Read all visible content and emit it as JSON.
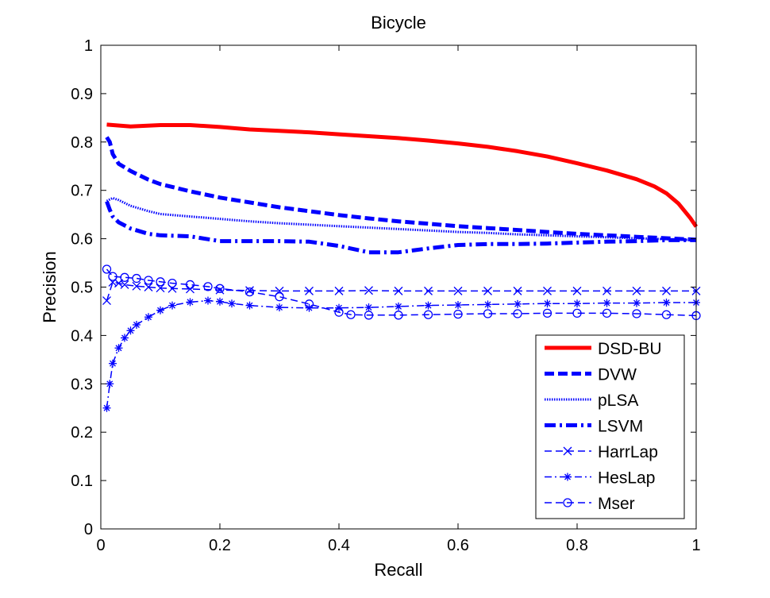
{
  "chart_data": {
    "type": "line",
    "title": "Bicycle",
    "xlabel": "Recall",
    "ylabel": "Precision",
    "xlim": [
      0,
      1
    ],
    "ylim": [
      0,
      1
    ],
    "grid": false,
    "legend_position": "bottom-right",
    "x_ticks": [
      "0",
      "0.2",
      "0.4",
      "0.6",
      "0.8",
      "1"
    ],
    "y_ticks": [
      "0",
      "0.1",
      "0.2",
      "0.3",
      "0.4",
      "0.5",
      "0.6",
      "0.7",
      "0.8",
      "0.9",
      "1"
    ],
    "series": [
      {
        "name": "DSD-BU",
        "color": "#ff0000",
        "style": "solid-thick",
        "marker": "none",
        "points": [
          [
            0.01,
            0.836
          ],
          [
            0.05,
            0.832
          ],
          [
            0.1,
            0.835
          ],
          [
            0.15,
            0.835
          ],
          [
            0.2,
            0.831
          ],
          [
            0.25,
            0.826
          ],
          [
            0.3,
            0.823
          ],
          [
            0.35,
            0.82
          ],
          [
            0.4,
            0.816
          ],
          [
            0.45,
            0.812
          ],
          [
            0.5,
            0.808
          ],
          [
            0.55,
            0.803
          ],
          [
            0.6,
            0.797
          ],
          [
            0.65,
            0.79
          ],
          [
            0.7,
            0.781
          ],
          [
            0.75,
            0.77
          ],
          [
            0.8,
            0.756
          ],
          [
            0.85,
            0.741
          ],
          [
            0.9,
            0.723
          ],
          [
            0.93,
            0.708
          ],
          [
            0.95,
            0.694
          ],
          [
            0.97,
            0.673
          ],
          [
            0.99,
            0.643
          ],
          [
            1.0,
            0.625
          ]
        ]
      },
      {
        "name": "DVW",
        "color": "#0000ff",
        "style": "dashed-thick",
        "marker": "none",
        "points": [
          [
            0.01,
            0.81
          ],
          [
            0.015,
            0.8
          ],
          [
            0.02,
            0.775
          ],
          [
            0.03,
            0.755
          ],
          [
            0.05,
            0.74
          ],
          [
            0.08,
            0.722
          ],
          [
            0.1,
            0.713
          ],
          [
            0.15,
            0.698
          ],
          [
            0.2,
            0.685
          ],
          [
            0.25,
            0.675
          ],
          [
            0.3,
            0.665
          ],
          [
            0.35,
            0.657
          ],
          [
            0.4,
            0.649
          ],
          [
            0.45,
            0.642
          ],
          [
            0.5,
            0.636
          ],
          [
            0.55,
            0.631
          ],
          [
            0.6,
            0.626
          ],
          [
            0.65,
            0.622
          ],
          [
            0.7,
            0.618
          ],
          [
            0.75,
            0.614
          ],
          [
            0.8,
            0.61
          ],
          [
            0.85,
            0.607
          ],
          [
            0.9,
            0.604
          ],
          [
            0.95,
            0.601
          ],
          [
            1.0,
            0.598
          ]
        ]
      },
      {
        "name": "pLSA",
        "color": "#0000ff",
        "style": "dotted",
        "marker": "none",
        "points": [
          [
            0.01,
            0.678
          ],
          [
            0.02,
            0.684
          ],
          [
            0.03,
            0.68
          ],
          [
            0.05,
            0.668
          ],
          [
            0.08,
            0.657
          ],
          [
            0.1,
            0.651
          ],
          [
            0.15,
            0.646
          ],
          [
            0.2,
            0.641
          ],
          [
            0.25,
            0.636
          ],
          [
            0.3,
            0.632
          ],
          [
            0.35,
            0.629
          ],
          [
            0.4,
            0.626
          ],
          [
            0.45,
            0.623
          ],
          [
            0.5,
            0.62
          ],
          [
            0.55,
            0.617
          ],
          [
            0.6,
            0.614
          ],
          [
            0.65,
            0.612
          ],
          [
            0.7,
            0.609
          ],
          [
            0.75,
            0.607
          ],
          [
            0.8,
            0.605
          ],
          [
            0.85,
            0.603
          ],
          [
            0.9,
            0.601
          ],
          [
            0.95,
            0.599
          ],
          [
            1.0,
            0.597
          ]
        ]
      },
      {
        "name": "LSVM",
        "color": "#0000ff",
        "style": "dashdot-thick",
        "marker": "none",
        "points": [
          [
            0.01,
            0.677
          ],
          [
            0.015,
            0.66
          ],
          [
            0.02,
            0.646
          ],
          [
            0.03,
            0.634
          ],
          [
            0.05,
            0.621
          ],
          [
            0.08,
            0.61
          ],
          [
            0.1,
            0.607
          ],
          [
            0.15,
            0.605
          ],
          [
            0.2,
            0.595
          ],
          [
            0.25,
            0.595
          ],
          [
            0.3,
            0.595
          ],
          [
            0.35,
            0.594
          ],
          [
            0.4,
            0.585
          ],
          [
            0.45,
            0.572
          ],
          [
            0.5,
            0.572
          ],
          [
            0.55,
            0.58
          ],
          [
            0.6,
            0.587
          ],
          [
            0.65,
            0.589
          ],
          [
            0.7,
            0.589
          ],
          [
            0.75,
            0.59
          ],
          [
            0.8,
            0.592
          ],
          [
            0.85,
            0.594
          ],
          [
            0.9,
            0.595
          ],
          [
            0.95,
            0.597
          ],
          [
            1.0,
            0.597
          ]
        ]
      },
      {
        "name": "HarrLap",
        "color": "#0000ff",
        "style": "dashed",
        "marker": "x",
        "points": [
          [
            0.01,
            0.472
          ],
          [
            0.02,
            0.51
          ],
          [
            0.03,
            0.508
          ],
          [
            0.04,
            0.505
          ],
          [
            0.06,
            0.502
          ],
          [
            0.08,
            0.5
          ],
          [
            0.1,
            0.498
          ],
          [
            0.12,
            0.497
          ],
          [
            0.15,
            0.496
          ],
          [
            0.2,
            0.494
          ],
          [
            0.25,
            0.493
          ],
          [
            0.3,
            0.492
          ],
          [
            0.35,
            0.492
          ],
          [
            0.4,
            0.492
          ],
          [
            0.45,
            0.493
          ],
          [
            0.5,
            0.492
          ],
          [
            0.55,
            0.492
          ],
          [
            0.6,
            0.492
          ],
          [
            0.65,
            0.492
          ],
          [
            0.7,
            0.492
          ],
          [
            0.75,
            0.492
          ],
          [
            0.8,
            0.492
          ],
          [
            0.85,
            0.492
          ],
          [
            0.9,
            0.492
          ],
          [
            0.95,
            0.492
          ],
          [
            1.0,
            0.492
          ]
        ]
      },
      {
        "name": "HesLap",
        "color": "#0000ff",
        "style": "dashdot",
        "marker": "asterisk",
        "points": [
          [
            0.01,
            0.25
          ],
          [
            0.015,
            0.3
          ],
          [
            0.02,
            0.342
          ],
          [
            0.03,
            0.374
          ],
          [
            0.04,
            0.395
          ],
          [
            0.05,
            0.41
          ],
          [
            0.06,
            0.422
          ],
          [
            0.08,
            0.438
          ],
          [
            0.1,
            0.452
          ],
          [
            0.12,
            0.462
          ],
          [
            0.15,
            0.469
          ],
          [
            0.18,
            0.472
          ],
          [
            0.2,
            0.47
          ],
          [
            0.22,
            0.466
          ],
          [
            0.25,
            0.462
          ],
          [
            0.3,
            0.458
          ],
          [
            0.35,
            0.457
          ],
          [
            0.4,
            0.457
          ],
          [
            0.45,
            0.458
          ],
          [
            0.5,
            0.46
          ],
          [
            0.55,
            0.462
          ],
          [
            0.6,
            0.463
          ],
          [
            0.65,
            0.464
          ],
          [
            0.7,
            0.465
          ],
          [
            0.75,
            0.466
          ],
          [
            0.8,
            0.466
          ],
          [
            0.85,
            0.467
          ],
          [
            0.9,
            0.467
          ],
          [
            0.95,
            0.468
          ],
          [
            1.0,
            0.468
          ]
        ]
      },
      {
        "name": "Mser",
        "color": "#0000ff",
        "style": "dashed",
        "marker": "circle",
        "points": [
          [
            0.01,
            0.537
          ],
          [
            0.02,
            0.522
          ],
          [
            0.04,
            0.52
          ],
          [
            0.06,
            0.518
          ],
          [
            0.08,
            0.514
          ],
          [
            0.1,
            0.511
          ],
          [
            0.12,
            0.508
          ],
          [
            0.15,
            0.505
          ],
          [
            0.18,
            0.501
          ],
          [
            0.2,
            0.497
          ],
          [
            0.25,
            0.49
          ],
          [
            0.3,
            0.48
          ],
          [
            0.35,
            0.465
          ],
          [
            0.4,
            0.448
          ],
          [
            0.42,
            0.443
          ],
          [
            0.45,
            0.442
          ],
          [
            0.5,
            0.442
          ],
          [
            0.55,
            0.443
          ],
          [
            0.6,
            0.444
          ],
          [
            0.65,
            0.445
          ],
          [
            0.7,
            0.445
          ],
          [
            0.75,
            0.446
          ],
          [
            0.8,
            0.446
          ],
          [
            0.85,
            0.446
          ],
          [
            0.9,
            0.445
          ],
          [
            0.95,
            0.443
          ],
          [
            1.0,
            0.441
          ]
        ]
      }
    ]
  }
}
